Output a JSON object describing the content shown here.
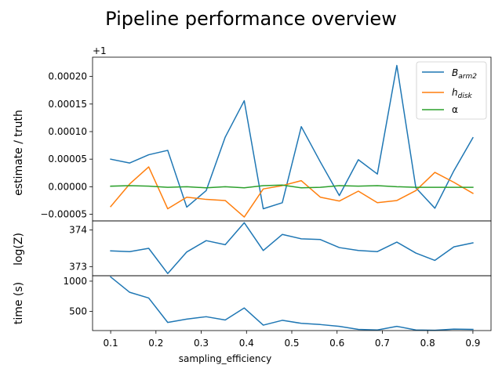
{
  "figure": {
    "title": "Pipeline performance overview",
    "xlabel": "sampling_efficiency",
    "offset_text": "+1"
  },
  "legend": [
    {
      "label": "B",
      "sub": "arm2",
      "color": "#1f77b4"
    },
    {
      "label": "h",
      "sub": "disk",
      "color": "#ff7f0e"
    },
    {
      "label": "α",
      "sub": "",
      "color": "#2ca02c"
    }
  ],
  "chart_data": [
    {
      "type": "line",
      "ylabel": "estimate / truth",
      "y_offset": 1,
      "x": [
        0.1,
        0.142,
        0.184,
        0.226,
        0.268,
        0.311,
        0.353,
        0.395,
        0.437,
        0.479,
        0.521,
        0.563,
        0.605,
        0.647,
        0.689,
        0.732,
        0.774,
        0.816,
        0.858,
        0.9
      ],
      "xticks": [
        "0.1",
        "0.2",
        "0.3",
        "0.4",
        "0.5",
        "0.6",
        "0.7",
        "0.8",
        "0.9"
      ],
      "xlim": [
        0.06,
        0.94
      ],
      "ylim": [
        -6.2e-05,
        0.000235
      ],
      "yticks": [
        "−0.00005",
        "0.00000",
        "0.00005",
        "0.00010",
        "0.00015",
        "0.00020"
      ],
      "ytick_values": [
        -5e-05,
        0,
        5e-05,
        0.0001,
        0.00015,
        0.0002
      ],
      "series": [
        {
          "name": "B_arm2",
          "color": "#1f77b4",
          "values": [
            5e-05,
            4.3e-05,
            5.8e-05,
            6.6e-05,
            -3.7e-05,
            -7e-06,
            9e-05,
            0.000156,
            -4e-05,
            -2.9e-05,
            0.000109,
            4.5e-05,
            -1.6e-05,
            4.9e-05,
            2.3e-05,
            0.00022,
            -2e-06,
            -3.9e-05,
            2.9e-05,
            8.9e-05
          ]
        },
        {
          "name": "h_disk",
          "color": "#ff7f0e",
          "values": [
            -3.6e-05,
            5e-06,
            3.6e-05,
            -4e-05,
            -1.9e-05,
            -2.3e-05,
            -2.5e-05,
            -5.5e-05,
            -4e-06,
            2e-06,
            1.1e-05,
            -1.9e-05,
            -2.6e-05,
            -8e-06,
            -2.9e-05,
            -2.5e-05,
            -7e-06,
            2.6e-05,
            8e-06,
            -1.2e-05
          ]
        },
        {
          "name": "α",
          "color": "#2ca02c",
          "values": [
            1e-06,
            2e-06,
            1e-06,
            -1e-06,
            0.0,
            -2e-06,
            0.0,
            -2e-06,
            2e-06,
            3e-06,
            -2e-06,
            -1e-06,
            2e-06,
            1e-06,
            2e-06,
            0.0,
            -1e-06,
            -1e-06,
            -1e-06,
            -1e-06
          ]
        }
      ]
    },
    {
      "type": "line",
      "ylabel": "log(Z)",
      "x": [
        0.1,
        0.142,
        0.184,
        0.226,
        0.268,
        0.311,
        0.353,
        0.395,
        0.437,
        0.479,
        0.521,
        0.563,
        0.605,
        0.647,
        0.689,
        0.732,
        0.774,
        0.816,
        0.858,
        0.9
      ],
      "ylim": [
        372.75,
        374.25
      ],
      "yticks": [
        "373",
        "374"
      ],
      "ytick_values": [
        373,
        374
      ],
      "series": [
        {
          "name": "log(Z)",
          "color": "#1f77b4",
          "values": [
            373.43,
            373.41,
            373.5,
            372.81,
            373.4,
            373.71,
            373.6,
            374.2,
            373.44,
            373.88,
            373.76,
            373.74,
            373.52,
            373.44,
            373.41,
            373.67,
            373.37,
            373.17,
            373.54,
            373.65
          ]
        }
      ]
    },
    {
      "type": "line",
      "ylabel": "time (s)",
      "x": [
        0.1,
        0.142,
        0.184,
        0.226,
        0.268,
        0.311,
        0.353,
        0.395,
        0.437,
        0.479,
        0.521,
        0.563,
        0.605,
        0.647,
        0.689,
        0.732,
        0.774,
        0.816,
        0.858,
        0.9
      ],
      "ylim": [
        180,
        1090
      ],
      "yticks": [
        "500",
        "1000"
      ],
      "ytick_values": [
        500,
        1000
      ],
      "series": [
        {
          "name": "time",
          "color": "#1f77b4",
          "values": [
            1070,
            815,
            720,
            315,
            370,
            410,
            355,
            555,
            270,
            350,
            300,
            280,
            250,
            200,
            190,
            250,
            190,
            185,
            205,
            200
          ]
        }
      ]
    }
  ]
}
